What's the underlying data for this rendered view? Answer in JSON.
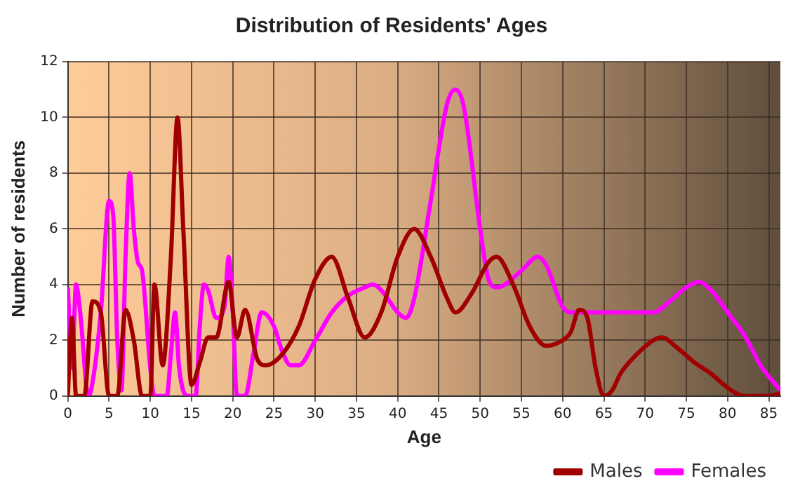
{
  "chart_data": {
    "type": "line",
    "title": "Distribution of Residents' Ages",
    "xlabel": "Age",
    "ylabel": "Number of residents",
    "xlim": [
      0,
      86.4
    ],
    "xticks": [
      0,
      5,
      10,
      15,
      20,
      25,
      30,
      35,
      40,
      45,
      50,
      55,
      60,
      65,
      70,
      75,
      80,
      85
    ],
    "ylim": [
      0,
      12
    ],
    "yticks": [
      0,
      2,
      4,
      6,
      8,
      10,
      12
    ],
    "grid": true,
    "legend": "bottom right",
    "marker": "none",
    "line_style": "solid",
    "series": [
      {
        "name": "Males",
        "color": "#a00000",
        "x": [
          0,
          0.5,
          1,
          2,
          3,
          4,
          5,
          6,
          7,
          8,
          9,
          10,
          10.5,
          11.5,
          12.5,
          13.3,
          14,
          15,
          16,
          17,
          18,
          19.5,
          20.5,
          21.5,
          23,
          24,
          26,
          28,
          30,
          32,
          34,
          36,
          38,
          40,
          42,
          44,
          46,
          47,
          49,
          51,
          52,
          54,
          56,
          58,
          60,
          61,
          62,
          63,
          64,
          65,
          66,
          67,
          69,
          71,
          72,
          74,
          76,
          78,
          80,
          82,
          85,
          86.4
        ],
        "values": [
          0,
          2.8,
          0,
          0,
          3.4,
          3,
          0,
          0,
          3.1,
          2,
          0,
          0,
          4,
          1.1,
          5,
          10,
          6,
          0.4,
          1.2,
          2.1,
          2.1,
          4.1,
          2.1,
          3.1,
          1.3,
          1.1,
          1.5,
          2.5,
          4.2,
          5,
          3.5,
          2.1,
          3,
          5,
          6,
          5,
          3.5,
          3,
          3.7,
          4.8,
          5,
          4,
          2.5,
          1.8,
          2,
          2.3,
          3.1,
          2.8,
          1,
          0,
          0.2,
          0.8,
          1.5,
          2,
          2.1,
          1.7,
          1.2,
          0.8,
          0.3,
          0,
          0,
          0.1
        ]
      },
      {
        "name": "Females",
        "color": "#ff00ff",
        "x": [
          0,
          0.5,
          1,
          1.5,
          2.5,
          3,
          4,
          5,
          5.5,
          6,
          6.5,
          7,
          7.5,
          8,
          8.5,
          9,
          10,
          10.5,
          12,
          12.5,
          13,
          13.5,
          14.5,
          15.5,
          16,
          16.5,
          17,
          18,
          19,
          19.5,
          20,
          20.5,
          21.5,
          22.5,
          23.5,
          25,
          26,
          27,
          28,
          30,
          32,
          34,
          36,
          37,
          38,
          40,
          41,
          42,
          44,
          46,
          47,
          48,
          50,
          51,
          52,
          53,
          55,
          57,
          58,
          60,
          61,
          65,
          69,
          71,
          73,
          75,
          76.5,
          78,
          80,
          82,
          84,
          86.4
        ],
        "values": [
          3.9,
          1,
          4,
          3,
          0,
          0.5,
          3,
          7,
          6.5,
          2,
          0.2,
          5,
          8,
          6,
          4.8,
          4.5,
          1,
          0,
          0,
          1.5,
          3,
          1,
          0,
          0,
          2.5,
          4,
          3.8,
          2.8,
          3.2,
          5,
          3,
          0,
          0,
          1.5,
          3,
          2.5,
          1.6,
          1.1,
          1.1,
          2,
          3,
          3.6,
          3.9,
          4,
          3.8,
          3,
          2.8,
          3.5,
          7,
          10.5,
          11,
          10.4,
          6,
          4.2,
          3.9,
          4,
          4.5,
          5,
          4.7,
          3.2,
          3,
          3,
          3,
          3,
          3.4,
          3.9,
          4.1,
          3.8,
          3,
          2.2,
          1.1,
          0.2
        ]
      }
    ]
  }
}
